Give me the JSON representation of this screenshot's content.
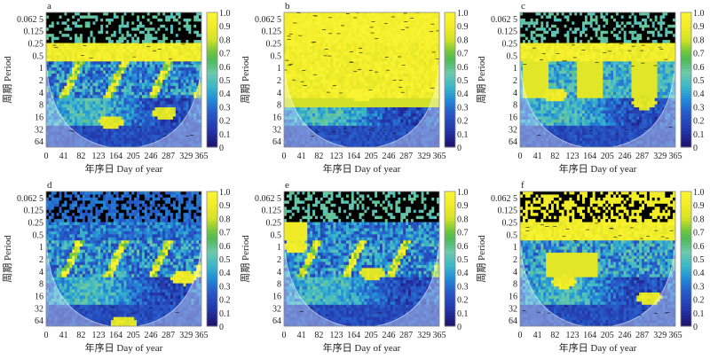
{
  "figure": {
    "description": "Wavelet coherence spectra (6 panels)"
  },
  "chart_data": [
    {
      "type": "heatmap",
      "panel_label": "a",
      "xlabel": "年序日 Day of year",
      "ylabel": "周期 Period",
      "x_ticks": [
        "0",
        "41",
        "82",
        "123",
        "164",
        "205",
        "246",
        "287",
        "329",
        "365"
      ],
      "y_ticks": [
        "0.062 5",
        "0.125",
        "0.25",
        "0.5",
        "1",
        "2",
        "4",
        "8",
        "16",
        "32",
        "64"
      ],
      "xlim": [
        0,
        365
      ],
      "colorbar": {
        "ticks": [
          "1.0",
          "0.9",
          "0.8",
          "0.7",
          "0.6",
          "0.5",
          "0.4",
          "0.3",
          "0.2",
          "0.1",
          "0"
        ],
        "range": [
          0,
          1
        ]
      },
      "pattern": "high_band",
      "high_coherence_band_period": [
        0.25,
        1
      ],
      "significant_regions": [
        {
          "day": 150,
          "period": 16,
          "coherence": 0.8
        },
        {
          "day": 275,
          "period": 10,
          "coherence": 0.8
        }
      ]
    },
    {
      "type": "heatmap",
      "panel_label": "b",
      "xlabel": "年序日 Day of year",
      "ylabel": "周期 Period",
      "x_ticks": [
        "0",
        "41",
        "82",
        "123",
        "164",
        "205",
        "246",
        "287",
        "329",
        "365"
      ],
      "y_ticks": [
        "0.062 5",
        "0.125",
        "0.25",
        "0.5",
        "1",
        "2",
        "4",
        "8",
        "16",
        "32",
        "64"
      ],
      "xlim": [
        0,
        365
      ],
      "colorbar": {
        "ticks": [
          "1.0",
          "0.9",
          "0.8",
          "0.7",
          "0.6",
          "0.5",
          "0.4",
          "0.3",
          "0.2",
          "0.1",
          "0"
        ],
        "range": [
          0,
          1
        ]
      },
      "pattern": "mostly_high",
      "high_coherence_band_period": [
        0.0625,
        8
      ],
      "significant_regions": [
        {
          "day": 180,
          "period": 4,
          "coherence": 0.95
        }
      ]
    },
    {
      "type": "heatmap",
      "panel_label": "c",
      "xlabel": "年序日 Day of year",
      "ylabel": "周期 Period",
      "x_ticks": [
        "0",
        "41",
        "82",
        "123",
        "164",
        "205",
        "246",
        "287",
        "329",
        "365"
      ],
      "y_ticks": [
        "0.062 5",
        "0.125",
        "0.25",
        "0.5",
        "1",
        "2",
        "4",
        "8",
        "16",
        "32",
        "64"
      ],
      "xlim": [
        0,
        365
      ],
      "colorbar": {
        "ticks": [
          "1.0",
          "0.9",
          "0.8",
          "0.7",
          "0.6",
          "0.5",
          "0.4",
          "0.3",
          "0.2",
          "0.1",
          "0"
        ],
        "range": [
          0,
          1
        ]
      },
      "pattern": "high_band_deep",
      "high_coherence_band_period": [
        0.25,
        8
      ],
      "significant_regions": [
        {
          "day": 80,
          "period": 4,
          "coherence": 0.85
        },
        {
          "day": 290,
          "period": 6,
          "coherence": 0.8
        }
      ]
    },
    {
      "type": "heatmap",
      "panel_label": "d",
      "xlabel": "年序日 Day of year",
      "ylabel": "周期 Period",
      "x_ticks": [
        "0",
        "41",
        "82",
        "123",
        "164",
        "205",
        "246",
        "287",
        "329",
        "365"
      ],
      "y_ticks": [
        "0.062 5",
        "0.125",
        "0.25",
        "0.5",
        "1",
        "2",
        "4",
        "8",
        "16",
        "32",
        "64"
      ],
      "xlim": [
        0,
        365
      ],
      "colorbar": {
        "ticks": [
          "1.0",
          "0.9",
          "0.8",
          "0.7",
          "0.6",
          "0.5",
          "0.4",
          "0.3",
          "0.2",
          "0.1",
          "0"
        ],
        "range": [
          0,
          1
        ]
      },
      "pattern": "mostly_low",
      "high_coherence_band_period": [],
      "significant_regions": [
        {
          "day": 320,
          "period": 5,
          "coherence": 0.85
        },
        {
          "day": 180,
          "period": 50,
          "coherence": 0.8
        }
      ]
    },
    {
      "type": "heatmap",
      "panel_label": "e",
      "xlabel": "年序日 Day of year",
      "ylabel": "周期 Period",
      "x_ticks": [
        "0",
        "41",
        "82",
        "123",
        "164",
        "205",
        "246",
        "287",
        "329",
        "365"
      ],
      "y_ticks": [
        "0.062 5",
        "0.125",
        "0.25",
        "0.5",
        "1",
        "2",
        "4",
        "8",
        "16",
        "32",
        "64"
      ],
      "xlim": [
        0,
        365
      ],
      "colorbar": {
        "ticks": [
          "1.0",
          "0.9",
          "0.8",
          "0.7",
          "0.6",
          "0.5",
          "0.4",
          "0.3",
          "0.2",
          "0.1",
          "0"
        ],
        "range": [
          0,
          1
        ]
      },
      "pattern": "low_left_edge",
      "high_coherence_band_period": [],
      "significant_regions": [
        {
          "day": 25,
          "period": 1,
          "coherence": 0.85
        },
        {
          "day": 205,
          "period": 4,
          "coherence": 0.8
        }
      ]
    },
    {
      "type": "heatmap",
      "panel_label": "f",
      "xlabel": "年序日 Day of year",
      "ylabel": "周期 Period",
      "x_ticks": [
        "0",
        "41",
        "82",
        "123",
        "164",
        "205",
        "246",
        "287",
        "329",
        "365"
      ],
      "y_ticks": [
        "0.062 5",
        "0.125",
        "0.25",
        "0.5",
        "1",
        "2",
        "4",
        "8",
        "16",
        "32",
        "64"
      ],
      "xlim": [
        0,
        365
      ],
      "colorbar": {
        "ticks": [
          "1.0",
          "0.9",
          "0.8",
          "0.7",
          "0.6",
          "0.5",
          "0.4",
          "0.3",
          "0.2",
          "0.1",
          "0"
        ],
        "range": [
          0,
          1
        ]
      },
      "pattern": "high_band_tall",
      "high_coherence_band_period": [
        0.0625,
        1
      ],
      "significant_regions": [
        {
          "day": 100,
          "period": 6,
          "coherence": 0.85
        },
        {
          "day": 300,
          "period": 14,
          "coherence": 0.8
        }
      ]
    }
  ]
}
